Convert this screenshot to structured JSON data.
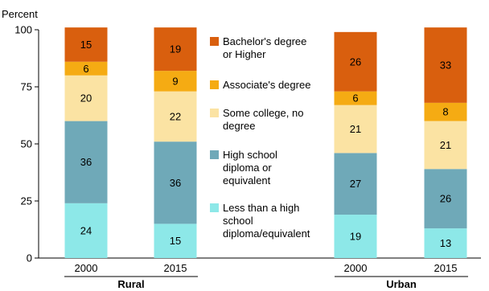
{
  "chart_data": {
    "type": "bar",
    "stacked": true,
    "ylabel": "Percent",
    "ylim": [
      0,
      100
    ],
    "yticks": [
      0,
      25,
      50,
      75,
      100
    ],
    "groups": [
      {
        "label": "Rural",
        "categories": [
          "2000",
          "2015"
        ]
      },
      {
        "label": "Urban",
        "categories": [
          "2000",
          "2015"
        ]
      }
    ],
    "categories": [
      "2000",
      "2015",
      "2000",
      "2015"
    ],
    "series": [
      {
        "name": "Less than a high school diploma/equivalent",
        "color": "#8de8e8",
        "values": [
          24,
          15,
          19,
          13
        ]
      },
      {
        "name": "High school diploma or equivalent",
        "color": "#6fa9b8",
        "values": [
          36,
          36,
          27,
          26
        ]
      },
      {
        "name": "Some college, no degree",
        "color": "#fbe3a3",
        "values": [
          20,
          22,
          21,
          21
        ]
      },
      {
        "name": "Associate's degree",
        "color": "#f5ab13",
        "values": [
          6,
          9,
          6,
          8
        ]
      },
      {
        "name": "Bachelor's degree or Higher",
        "color": "#d95f0e",
        "values": [
          15,
          19,
          26,
          33
        ]
      }
    ],
    "legend": {
      "placement": "center",
      "entries": [
        {
          "series": 4,
          "lines": [
            "Bachelor's degree",
            "or Higher"
          ]
        },
        {
          "series": 3,
          "lines": [
            "Associate's degree"
          ]
        },
        {
          "series": 2,
          "lines": [
            "Some college, no",
            "degree"
          ]
        },
        {
          "series": 1,
          "lines": [
            "High school",
            "diploma or",
            "equivalent"
          ]
        },
        {
          "series": 0,
          "lines": [
            "Less than a high",
            "school",
            "diploma/equivalent"
          ]
        }
      ]
    },
    "grid": false
  }
}
